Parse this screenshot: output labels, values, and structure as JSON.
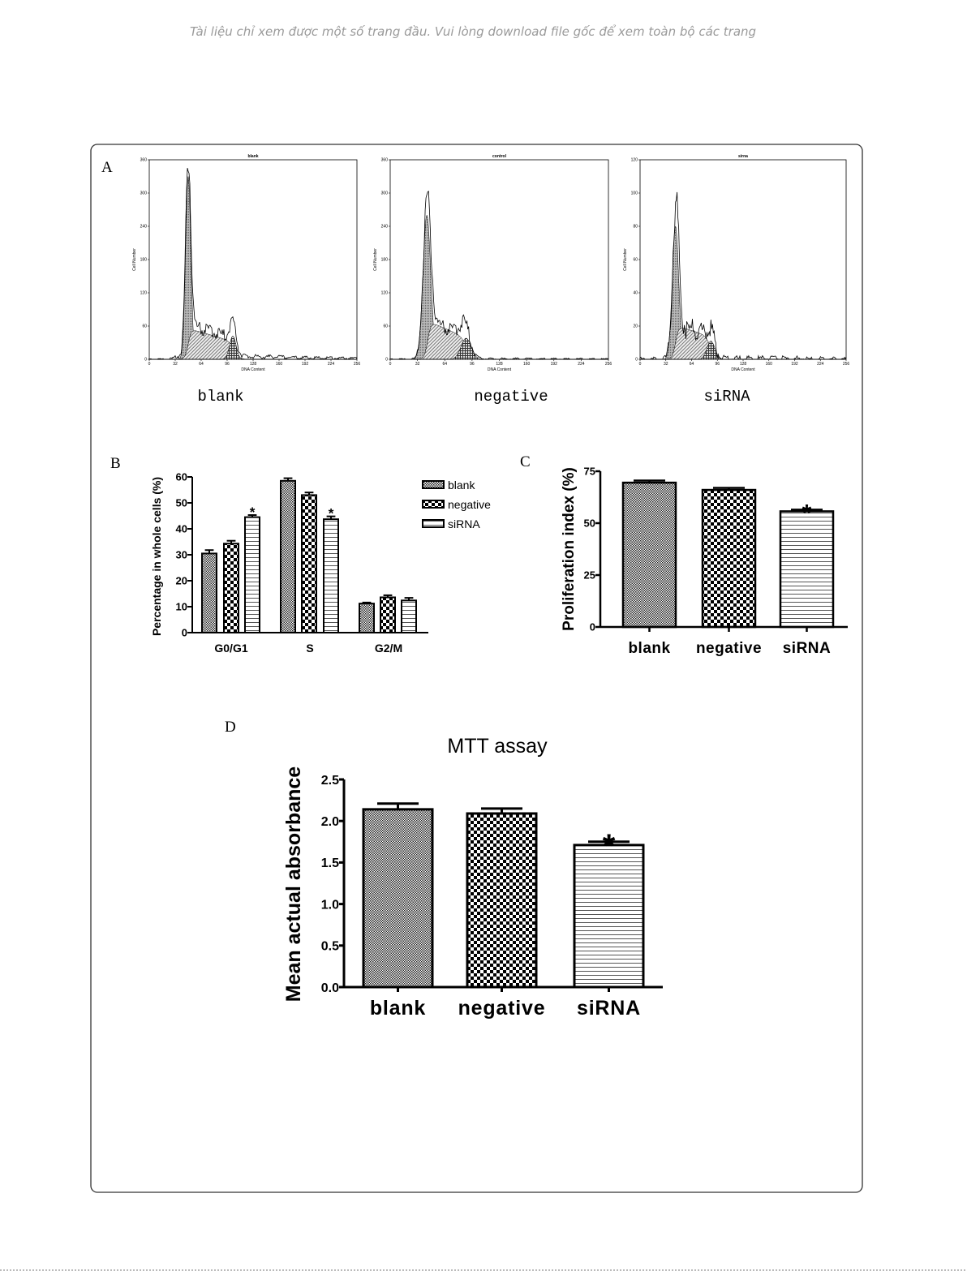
{
  "watermark": "Tài liệu chỉ xem được một số trang đầu. Vui lòng download file gốc để xem toàn bộ các trang",
  "panels": {
    "a": "A",
    "b": "B",
    "c": "C",
    "d": "D"
  },
  "captions": {
    "blank": "blank",
    "negative": "negative",
    "sirna": "siRNA"
  },
  "chart_data": [
    {
      "id": "hist-blank",
      "panel": "A",
      "type": "area",
      "title": "blank",
      "xlabel": "DNA Content",
      "ylabel": "Cell Number",
      "xlim": [
        0,
        256
      ],
      "xticks": [
        0,
        32,
        64,
        96,
        128,
        160,
        192,
        224,
        256
      ],
      "ylim": [
        0,
        360
      ],
      "yticks": [
        0,
        60,
        120,
        180,
        240,
        300,
        360
      ],
      "components": {
        "G1": {
          "mean": 48,
          "sd": 3.2,
          "peak": 330
        },
        "S": {
          "start": 50,
          "end": 103,
          "height_start": 55,
          "height_end": 32
        },
        "G2": {
          "mean": 103,
          "sd": 4,
          "peak": 42
        },
        "debris": 6
      }
    },
    {
      "id": "hist-negative",
      "panel": "A",
      "type": "area",
      "title": "control",
      "xlabel": "DNA Content",
      "ylabel": "Cell Number",
      "xlim": [
        0,
        256
      ],
      "xticks": [
        0,
        32,
        64,
        96,
        128,
        160,
        192,
        224,
        256
      ],
      "ylim": [
        0,
        360
      ],
      "yticks": [
        0,
        60,
        120,
        180,
        240,
        300,
        360
      ],
      "components": {
        "G1": {
          "mean": 43,
          "sd": 4.5,
          "peak": 260
        },
        "S": {
          "start": 46,
          "end": 88,
          "height_start": 68,
          "height_end": 40
        },
        "G2": {
          "mean": 89,
          "sd": 6,
          "peak": 38
        },
        "debris": 1
      }
    },
    {
      "id": "hist-sirna",
      "panel": "A",
      "type": "area",
      "title": "sirna",
      "xlabel": "DNA Content",
      "ylabel": "Cell Number",
      "xlim": [
        0,
        256
      ],
      "xticks": [
        0,
        32,
        64,
        96,
        128,
        160,
        192,
        224,
        256
      ],
      "ylim": [
        0,
        120
      ],
      "yticks": [
        0,
        20,
        40,
        60,
        80,
        100,
        120
      ],
      "components": {
        "G1": {
          "mean": 44,
          "sd": 4,
          "peak": 80
        },
        "S": {
          "start": 46,
          "end": 86,
          "height_start": 20,
          "height_end": 14
        },
        "G2": {
          "mean": 88,
          "sd": 5,
          "peak": 11
        },
        "debris": 0.5
      }
    },
    {
      "id": "cell-cycle",
      "panel": "B",
      "type": "bar",
      "title": "",
      "xlabel": "",
      "ylabel": "Percentage in whole cells (%)",
      "ylim": [
        0,
        60
      ],
      "yticks": [
        0,
        10,
        20,
        30,
        40,
        50,
        60
      ],
      "categories": [
        "G0/G1",
        "S",
        "G2/M"
      ],
      "legend_position": "top-right",
      "series": [
        {
          "name": "blank",
          "pattern": "fine-checker",
          "values": [
            30.5,
            58.5,
            11.2
          ],
          "errors": [
            1.3,
            1.0,
            0.4
          ],
          "significant": [
            false,
            false,
            false
          ]
        },
        {
          "name": "negative",
          "pattern": "coarse-checker",
          "values": [
            34.3,
            53.0,
            13.6
          ],
          "errors": [
            1.1,
            1.0,
            0.8
          ],
          "significant": [
            false,
            false,
            false
          ]
        },
        {
          "name": "siRNA",
          "pattern": "horizontal-lines",
          "values": [
            44.5,
            43.7,
            12.4
          ],
          "errors": [
            0.8,
            1.1,
            1.0
          ],
          "significant": [
            true,
            true,
            false
          ]
        }
      ],
      "sig_marker": "*"
    },
    {
      "id": "proliferation",
      "panel": "C",
      "type": "bar",
      "title": "",
      "xlabel": "",
      "ylabel": "Proliferation index (%)",
      "ylim": [
        0,
        75
      ],
      "yticks": [
        0,
        25,
        50,
        75
      ],
      "categories": [
        "blank",
        "negative",
        "siRNA"
      ],
      "patterns": [
        "fine-checker",
        "coarse-checker",
        "horizontal-lines"
      ],
      "values": [
        69.5,
        66.0,
        55.7
      ],
      "errors": [
        1.0,
        1.0,
        0.8
      ],
      "significant": [
        false,
        false,
        true
      ],
      "sig_marker": "*"
    },
    {
      "id": "mtt",
      "panel": "D",
      "type": "bar",
      "title": "MTT assay",
      "xlabel": "",
      "ylabel": "Mean actual absorbance",
      "ylim": [
        0,
        2.5
      ],
      "yticks": [
        0.0,
        0.5,
        1.0,
        1.5,
        2.0,
        2.5
      ],
      "ytick_labels": [
        "0.0",
        "0.5",
        "1.0",
        "1.5",
        "2.0",
        "2.5"
      ],
      "categories": [
        "blank",
        "negative",
        "siRNA"
      ],
      "patterns": [
        "fine-checker",
        "coarse-checker",
        "horizontal-lines"
      ],
      "values": [
        2.14,
        2.09,
        1.71
      ],
      "errors": [
        0.07,
        0.06,
        0.04
      ],
      "significant": [
        false,
        false,
        true
      ],
      "sig_marker": "*"
    }
  ]
}
